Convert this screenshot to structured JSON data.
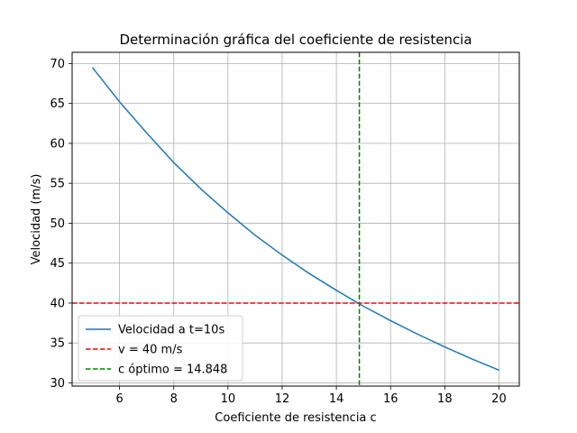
{
  "chart_data": {
    "type": "line",
    "title": "Determinación gráfica del coeficiente de resistencia",
    "xlabel": "Coeficiente de resistencia c",
    "ylabel": "Velocidad (m/s)",
    "xlim": [
      4.25,
      20.75
    ],
    "ylim": [
      29.6,
      71.4
    ],
    "xticks": [
      6,
      8,
      10,
      12,
      14,
      16,
      18,
      20
    ],
    "yticks": [
      30,
      35,
      40,
      45,
      50,
      55,
      60,
      65,
      70
    ],
    "grid": true,
    "legend_position": "lower left",
    "series": [
      {
        "name": "Velocidad a t=10s",
        "color": "#1f77b4",
        "style": "solid",
        "x": [
          5,
          6,
          7,
          8,
          9,
          10,
          11,
          12,
          13,
          14,
          15,
          16,
          17,
          18,
          19,
          20
        ],
        "y": [
          69.5,
          65.2,
          61.3,
          57.6,
          54.3,
          51.3,
          48.5,
          46.0,
          43.7,
          41.6,
          39.6,
          37.8,
          36.1,
          34.5,
          33.0,
          31.6
        ]
      },
      {
        "name": "v = 40 m/s",
        "color": "#ff0000",
        "style": "dashed",
        "orientation": "horizontal",
        "value": 40
      },
      {
        "name": "c óptimo = 14.848",
        "color": "#008000",
        "style": "dashed",
        "orientation": "vertical",
        "value": 14.848
      }
    ]
  }
}
